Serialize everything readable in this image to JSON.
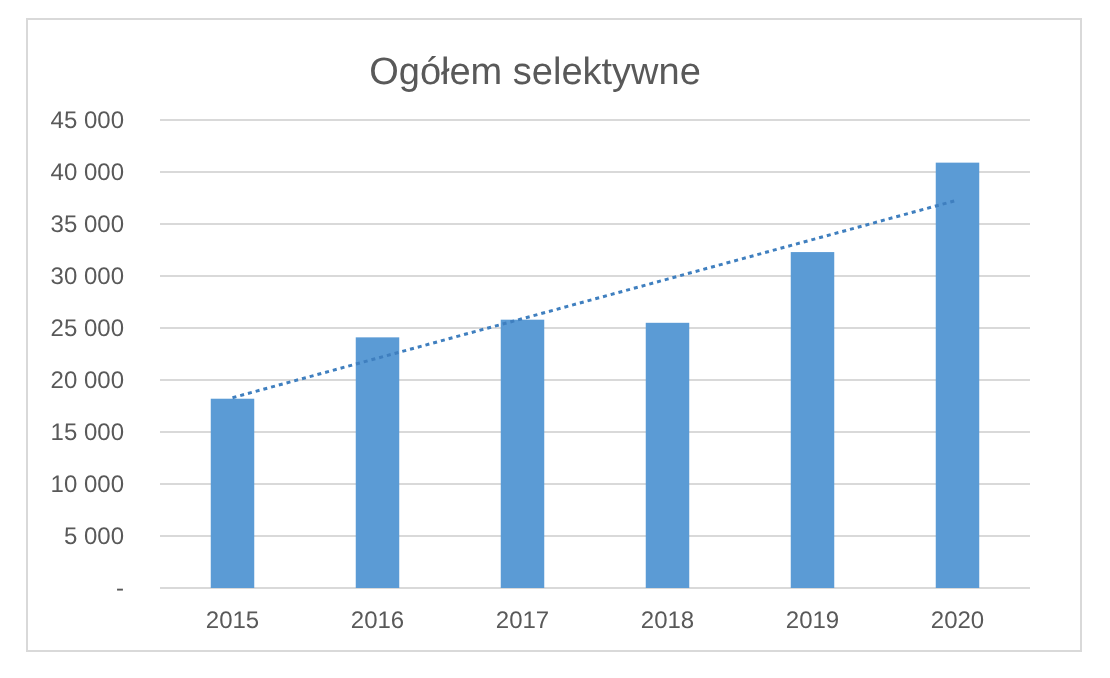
{
  "chart_data": {
    "type": "bar",
    "title": "Ogółem selektywne",
    "categories": [
      "2015",
      "2016",
      "2017",
      "2018",
      "2019",
      "2020"
    ],
    "series": [
      {
        "color": "#5b9bd5",
        "values": [
          18200,
          24100,
          25800,
          25500,
          32300,
          40900
        ]
      },
      {
        "type": "line",
        "color": "#3f7fbf",
        "line_style": "dotted",
        "marker": "none",
        "values": [
          18300,
          22100,
          25900,
          29700,
          33500,
          37300
        ]
      }
    ],
    "ylim": [
      0,
      45000
    ],
    "yticks": [
      {
        "value": 0,
        "label": "-"
      },
      {
        "value": 5000,
        "label": "5 000"
      },
      {
        "value": 10000,
        "label": "10 000"
      },
      {
        "value": 15000,
        "label": "15 000"
      },
      {
        "value": 20000,
        "label": "20 000"
      },
      {
        "value": 25000,
        "label": "25 000"
      },
      {
        "value": 30000,
        "label": "30 000"
      },
      {
        "value": 35000,
        "label": "35 000"
      },
      {
        "value": 40000,
        "label": "40 000"
      },
      {
        "value": 45000,
        "label": "45 000"
      }
    ],
    "grid": "y"
  }
}
